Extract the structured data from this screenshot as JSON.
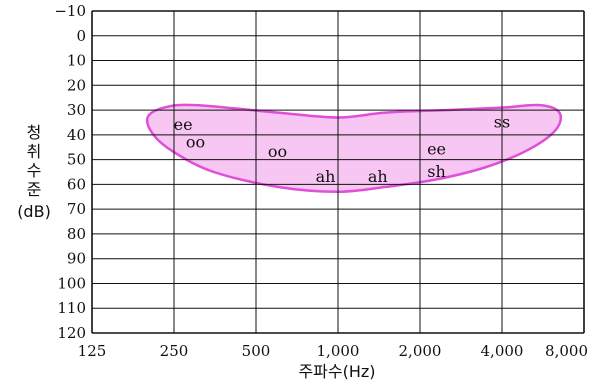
{
  "chart_data": {
    "type": "scatter",
    "title": "",
    "xlabel": "주파수(Hz)",
    "ylabel": "청취수준(dB)",
    "ylabel_chars": [
      "청",
      "취",
      "수",
      "준"
    ],
    "ylabel_unit": "(dB)",
    "x_scale": "log2",
    "x_ticks": [
      125,
      250,
      500,
      1000,
      2000,
      4000,
      8000
    ],
    "x_tick_labels": [
      "125",
      "250",
      "500",
      "1,000",
      "2,000",
      "4,000",
      "8,000"
    ],
    "xlim": [
      125,
      8000
    ],
    "y_ticks": [
      -10,
      0,
      10,
      20,
      30,
      40,
      50,
      60,
      70,
      80,
      90,
      100,
      110,
      120
    ],
    "y_tick_labels": [
      "−10",
      "0",
      "10",
      "20",
      "30",
      "40",
      "50",
      "60",
      "70",
      "80",
      "90",
      "100",
      "110",
      "120"
    ],
    "ylim": [
      -10,
      120
    ],
    "y_inverted": true,
    "grid": true,
    "band_color": "#f7c6f2",
    "band_edge_color": "#e04fd8",
    "points": [
      {
        "label": "ee",
        "x": 270,
        "y": 36
      },
      {
        "label": "oo",
        "x": 300,
        "y": 43
      },
      {
        "label": "oo",
        "x": 600,
        "y": 47
      },
      {
        "label": "ah",
        "x": 900,
        "y": 57
      },
      {
        "label": "ah",
        "x": 1400,
        "y": 57
      },
      {
        "label": "ee",
        "x": 2300,
        "y": 46
      },
      {
        "label": "sh",
        "x": 2300,
        "y": 55
      },
      {
        "label": "ss",
        "x": 4000,
        "y": 35
      }
    ],
    "band_outline": [
      [
        200,
        33
      ],
      [
        230,
        29
      ],
      [
        300,
        28
      ],
      [
        600,
        31
      ],
      [
        1000,
        33
      ],
      [
        1500,
        31
      ],
      [
        2500,
        30
      ],
      [
        4000,
        29
      ],
      [
        5500,
        28
      ],
      [
        6500,
        31
      ],
      [
        6300,
        38
      ],
      [
        5000,
        46
      ],
      [
        3500,
        53
      ],
      [
        2300,
        58
      ],
      [
        1500,
        61
      ],
      [
        1000,
        63
      ],
      [
        600,
        61
      ],
      [
        350,
        55
      ],
      [
        250,
        47
      ],
      [
        210,
        40
      ]
    ]
  }
}
